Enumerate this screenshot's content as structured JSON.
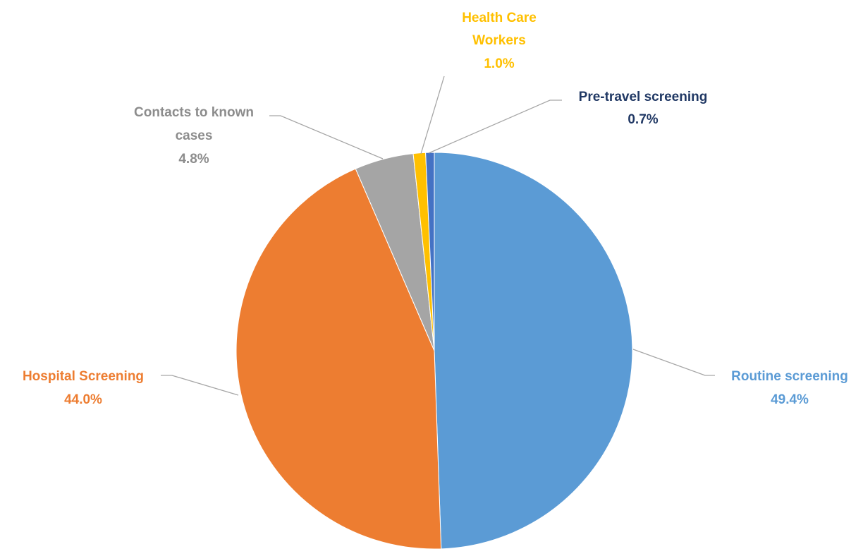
{
  "chart_data": {
    "type": "pie",
    "title": "",
    "start_angle_deg": 0,
    "direction": "clockwise",
    "slices": [
      {
        "name": "Routine screening",
        "label_line1": "Routine screening",
        "label_line2": "",
        "pct_text": "49.4%",
        "value": 49.4,
        "color": "#5b9bd5"
      },
      {
        "name": "Hospital Screening",
        "label_line1": "Hospital Screening",
        "label_line2": "",
        "pct_text": "44.0%",
        "value": 44.0,
        "color": "#ed7d31"
      },
      {
        "name": "Contacts to known cases",
        "label_line1": "Contacts to known",
        "label_line2": "cases",
        "pct_text": "4.8%",
        "value": 4.8,
        "color": "#a5a5a5"
      },
      {
        "name": "Health Care Workers",
        "label_line1": "Health Care",
        "label_line2": "Workers",
        "pct_text": "1.0%",
        "value": 1.0,
        "color": "#ffc000"
      },
      {
        "name": "Pre-travel screening",
        "label_line1": "Pre-travel screening",
        "label_line2": "",
        "pct_text": "0.7%",
        "value": 0.7,
        "color": "#4472c4",
        "label_color": "#203864"
      }
    ]
  }
}
